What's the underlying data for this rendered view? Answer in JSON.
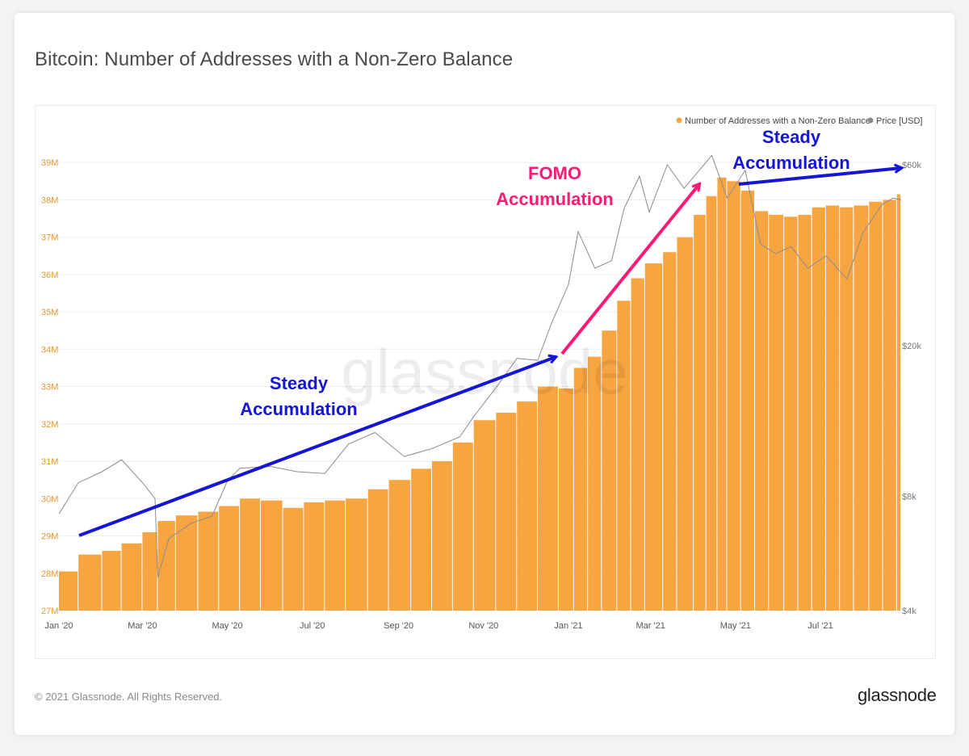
{
  "title": "Bitcoin: Number of Addresses with a Non-Zero Balance",
  "footer": {
    "copyright": "© 2021 Glassnode. All Rights Reserved.",
    "logo": "glassnode"
  },
  "watermark": "glassnode",
  "colors": {
    "bars": "#f7a541",
    "price": "#8c8c8c",
    "blue_arrow": "#1515d6",
    "pink_arrow": "#ff1a75",
    "left_axis": "#e8962c"
  },
  "annotations": [
    {
      "text": [
        "Steady",
        "Accumulation"
      ],
      "color": "#1515d6"
    },
    {
      "text": [
        "FOMO",
        "Accumulation"
      ],
      "color": "#ff1a75"
    },
    {
      "text": [
        "Steady",
        "Accumulation"
      ],
      "color": "#1515d6"
    }
  ],
  "chart_data": {
    "type": "bar",
    "title": "Bitcoin: Number of Addresses with a Non-Zero Balance",
    "x_ticks": [
      "Jan '20",
      "Mar '20",
      "May '20",
      "Jul '20",
      "Sep '20",
      "Nov '20",
      "Jan '21",
      "Mar '21",
      "May '21",
      "Jul '21"
    ],
    "y_left": {
      "ticks": [
        "27M",
        "28M",
        "29M",
        "30M",
        "31M",
        "32M",
        "33M",
        "34M",
        "35M",
        "36M",
        "37M",
        "38M",
        "39M"
      ],
      "range": [
        27,
        39.2
      ]
    },
    "y_right": {
      "ticks": [
        "$4k",
        "$8k",
        "$20k",
        "$60k"
      ],
      "scale": "log",
      "range_usd": [
        4000,
        60000
      ]
    },
    "legend": [
      "Number of Addresses with a Non-Zero Balance",
      "Price [USD]"
    ],
    "legend_position": "top-right",
    "series": [
      {
        "name": "Number of Addresses with a Non-Zero Balance",
        "type": "bar",
        "unit": "M",
        "points": [
          [
            "2020-01-01",
            28.05
          ],
          [
            "2020-01-15",
            28.5
          ],
          [
            "2020-02-01",
            28.6
          ],
          [
            "2020-02-15",
            28.8
          ],
          [
            "2020-03-01",
            29.1
          ],
          [
            "2020-03-12",
            29.4
          ],
          [
            "2020-03-25",
            29.55
          ],
          [
            "2020-04-10",
            29.65
          ],
          [
            "2020-04-25",
            29.8
          ],
          [
            "2020-05-10",
            30.0
          ],
          [
            "2020-05-25",
            29.95
          ],
          [
            "2020-06-10",
            29.75
          ],
          [
            "2020-06-25",
            29.9
          ],
          [
            "2020-07-10",
            29.95
          ],
          [
            "2020-07-25",
            30.0
          ],
          [
            "2020-08-10",
            30.25
          ],
          [
            "2020-08-25",
            30.5
          ],
          [
            "2020-09-10",
            30.8
          ],
          [
            "2020-09-25",
            31.0
          ],
          [
            "2020-10-10",
            31.5
          ],
          [
            "2020-10-25",
            32.1
          ],
          [
            "2020-11-10",
            32.3
          ],
          [
            "2020-11-25",
            32.6
          ],
          [
            "2020-12-10",
            33.0
          ],
          [
            "2020-12-25",
            32.95
          ],
          [
            "2021-01-05",
            33.5
          ],
          [
            "2021-01-15",
            33.8
          ],
          [
            "2021-01-25",
            34.5
          ],
          [
            "2021-02-05",
            35.3
          ],
          [
            "2021-02-15",
            35.9
          ],
          [
            "2021-02-25",
            36.3
          ],
          [
            "2021-03-10",
            36.6
          ],
          [
            "2021-03-20",
            37.0
          ],
          [
            "2021-04-01",
            37.6
          ],
          [
            "2021-04-10",
            38.1
          ],
          [
            "2021-04-18",
            38.6
          ],
          [
            "2021-04-25",
            38.5
          ],
          [
            "2021-05-05",
            38.25
          ],
          [
            "2021-05-15",
            37.7
          ],
          [
            "2021-05-25",
            37.6
          ],
          [
            "2021-06-05",
            37.55
          ],
          [
            "2021-06-15",
            37.6
          ],
          [
            "2021-06-25",
            37.8
          ],
          [
            "2021-07-05",
            37.85
          ],
          [
            "2021-07-15",
            37.8
          ],
          [
            "2021-07-25",
            37.85
          ],
          [
            "2021-08-05",
            37.95
          ],
          [
            "2021-08-15",
            38.0
          ],
          [
            "2021-08-25",
            38.15
          ]
        ]
      },
      {
        "name": "Price [USD]",
        "type": "line",
        "unit": "USD",
        "points": [
          [
            "2020-01-01",
            7200
          ],
          [
            "2020-01-15",
            8700
          ],
          [
            "2020-02-01",
            9300
          ],
          [
            "2020-02-15",
            10000
          ],
          [
            "2020-03-01",
            8700
          ],
          [
            "2020-03-10",
            7900
          ],
          [
            "2020-03-12",
            4900
          ],
          [
            "2020-03-20",
            6200
          ],
          [
            "2020-04-05",
            6800
          ],
          [
            "2020-04-20",
            7100
          ],
          [
            "2020-05-01",
            8800
          ],
          [
            "2020-05-10",
            9500
          ],
          [
            "2020-06-01",
            9600
          ],
          [
            "2020-06-20",
            9300
          ],
          [
            "2020-07-10",
            9200
          ],
          [
            "2020-07-27",
            11000
          ],
          [
            "2020-08-15",
            11800
          ],
          [
            "2020-09-05",
            10200
          ],
          [
            "2020-09-25",
            10700
          ],
          [
            "2020-10-15",
            11500
          ],
          [
            "2020-10-25",
            13000
          ],
          [
            "2020-11-10",
            15500
          ],
          [
            "2020-11-25",
            18500
          ],
          [
            "2020-12-10",
            18300
          ],
          [
            "2020-12-20",
            23000
          ],
          [
            "2021-01-01",
            29000
          ],
          [
            "2021-01-08",
            40000
          ],
          [
            "2021-01-20",
            32000
          ],
          [
            "2021-02-01",
            33500
          ],
          [
            "2021-02-10",
            46000
          ],
          [
            "2021-02-21",
            56000
          ],
          [
            "2021-02-28",
            45000
          ],
          [
            "2021-03-13",
            60000
          ],
          [
            "2021-03-25",
            52000
          ],
          [
            "2021-04-14",
            63500
          ],
          [
            "2021-04-25",
            49000
          ],
          [
            "2021-05-08",
            58000
          ],
          [
            "2021-05-19",
            37000
          ],
          [
            "2021-05-30",
            35000
          ],
          [
            "2021-06-10",
            36500
          ],
          [
            "2021-06-22",
            32000
          ],
          [
            "2021-07-05",
            34500
          ],
          [
            "2021-07-20",
            30000
          ],
          [
            "2021-08-01",
            40000
          ],
          [
            "2021-08-14",
            47000
          ],
          [
            "2021-08-22",
            49000
          ],
          [
            "2021-08-28",
            48500
          ]
        ]
      }
    ]
  }
}
